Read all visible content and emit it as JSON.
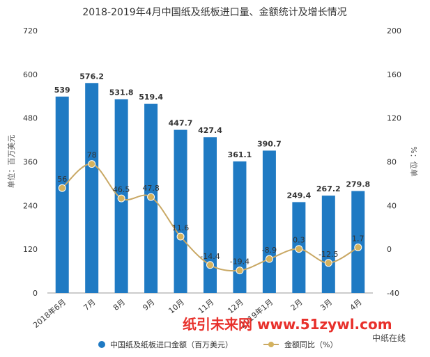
{
  "chart_data": {
    "type": "bar",
    "title": "2018-2019年4月中国纸及纸板进口量、金额统计及增长情况",
    "categories": [
      "2018年6月",
      "7月",
      "8月",
      "9月",
      "10月",
      "11月",
      "12月",
      "2019年1月",
      "2月",
      "3月",
      "4月"
    ],
    "series": [
      {
        "name": "中国纸及纸板进口金额（百万美元）",
        "type": "bar",
        "axis": "left",
        "values": [
          539,
          576.2,
          531.8,
          519.4,
          447.7,
          427.4,
          361.1,
          390.7,
          249.4,
          267.2,
          279.8
        ],
        "labels": [
          "539",
          "576.2",
          "531.8",
          "519.4",
          "447.7",
          "427.4",
          "361.1",
          "390.7",
          "249.4",
          "267.2",
          "279.8"
        ]
      },
      {
        "name": "金额同比（%）",
        "type": "line",
        "axis": "right",
        "values": [
          56,
          78,
          46.5,
          47.8,
          11.6,
          -14.4,
          -19.4,
          -8.9,
          0.3,
          -12.5,
          1.7
        ],
        "labels": [
          "56",
          "78",
          "46.5",
          "47.8",
          "11.6",
          "-14.4",
          "-19.4",
          "-8.9",
          "0.3",
          "-12.5",
          "1.7"
        ]
      }
    ],
    "ylabel": "单位：百万美元",
    "y2label": "%：位单",
    "ylim": [
      0,
      720
    ],
    "y2lim": [
      -40,
      200
    ],
    "yticks": [
      "0",
      "120",
      "240",
      "360",
      "480",
      "600",
      "720"
    ],
    "y2ticks": [
      "-40",
      "0",
      "40",
      "80",
      "120",
      "160",
      "200"
    ],
    "legend_position": "bottom",
    "grid": false
  },
  "colors": {
    "bar": "#1f7ac3",
    "line": "#c9a864",
    "marker": "#d4b25e"
  },
  "watermark": {
    "site": "纸引未来网 www.51zywl.com",
    "brand": "中纸在线"
  }
}
